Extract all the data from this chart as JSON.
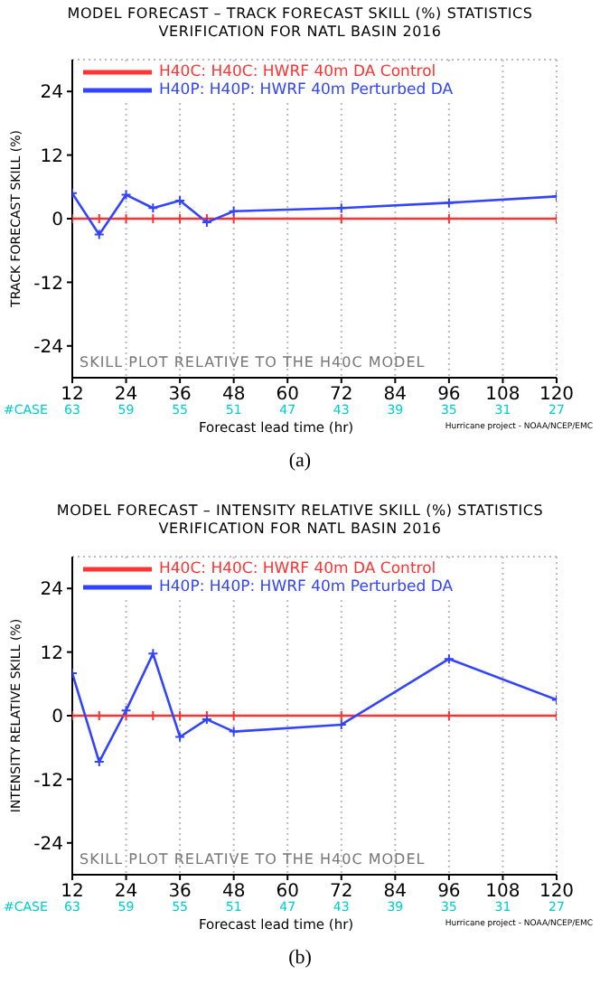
{
  "chart_data": [
    {
      "type": "line",
      "title": "MODEL FORECAST – TRACK FORECAST SKILL (%) STATISTICS",
      "subtitle": "VERIFICATION FOR NATL BASIN 2016",
      "xlabel": "Forecast lead time (hr)",
      "ylabel": "TRACK FORECAST SKILL (%)",
      "x": [
        12,
        18,
        24,
        30,
        36,
        42,
        48,
        72,
        96,
        120
      ],
      "series": [
        {
          "name": "H40C: H40C: HWRF 40m DA Control",
          "color": "#ff3333",
          "values": [
            0,
            0,
            0,
            0,
            0,
            0,
            0,
            0,
            0,
            0
          ]
        },
        {
          "name": "H40P: H40P: HWRF 40m Perturbed DA",
          "color": "#3344ff",
          "values": [
            4.8,
            -3,
            4.5,
            2,
            3.4,
            -0.7,
            1.4,
            2,
            3,
            4.2
          ]
        }
      ],
      "xlim": [
        12,
        120
      ],
      "xticks": [
        12,
        24,
        36,
        48,
        60,
        72,
        84,
        96,
        108,
        120
      ],
      "ylim": [
        -30,
        30
      ],
      "yticks": [
        -24,
        -12,
        0,
        12,
        24
      ],
      "grid": true,
      "legend": "top left",
      "marker": "cross",
      "line_style": "solid",
      "annotations": [
        "SKILL PLOT RELATIVE TO THE H40C MODEL",
        "#CASE",
        "63",
        "59",
        "55",
        "51",
        "47",
        "43",
        "39",
        "35",
        "31",
        "27",
        "Hurricane project - NOAA/NCEP/EMC",
        "(a)"
      ]
    },
    {
      "type": "line",
      "title": "MODEL FORECAST – INTENSITY RELATIVE SKILL (%) STATISTICS",
      "subtitle": "VERIFICATION FOR NATL BASIN 2016",
      "xlabel": "Forecast lead time (hr)",
      "ylabel": "INTENSITY RELATIVE SKILL (%)",
      "x": [
        12,
        18,
        24,
        30,
        36,
        42,
        48,
        72,
        96,
        120
      ],
      "series": [
        {
          "name": "H40C: H40C: HWRF 40m DA Control",
          "color": "#ff3333",
          "values": [
            0,
            0,
            0,
            0,
            0,
            0,
            0,
            0,
            0,
            0
          ]
        },
        {
          "name": "H40P: H40P: HWRF 40m Perturbed DA",
          "color": "#3344ff",
          "values": [
            8,
            -8.7,
            1,
            11.7,
            -4,
            -0.7,
            -3,
            -1.7,
            10.7,
            3
          ]
        }
      ],
      "xlim": [
        12,
        120
      ],
      "xticks": [
        12,
        24,
        36,
        48,
        60,
        72,
        84,
        96,
        108,
        120
      ],
      "ylim": [
        -30,
        30
      ],
      "yticks": [
        -24,
        -12,
        0,
        12,
        24
      ],
      "grid": true,
      "legend": "top left",
      "marker": "cross",
      "line_style": "solid",
      "annotations": [
        "SKILL PLOT RELATIVE TO THE H40C MODEL",
        "#CASE",
        "63",
        "59",
        "55",
        "51",
        "47",
        "43",
        "39",
        "35",
        "31",
        "27",
        "Hurricane project - NOAA/NCEP/EMC",
        "(b)"
      ]
    }
  ]
}
